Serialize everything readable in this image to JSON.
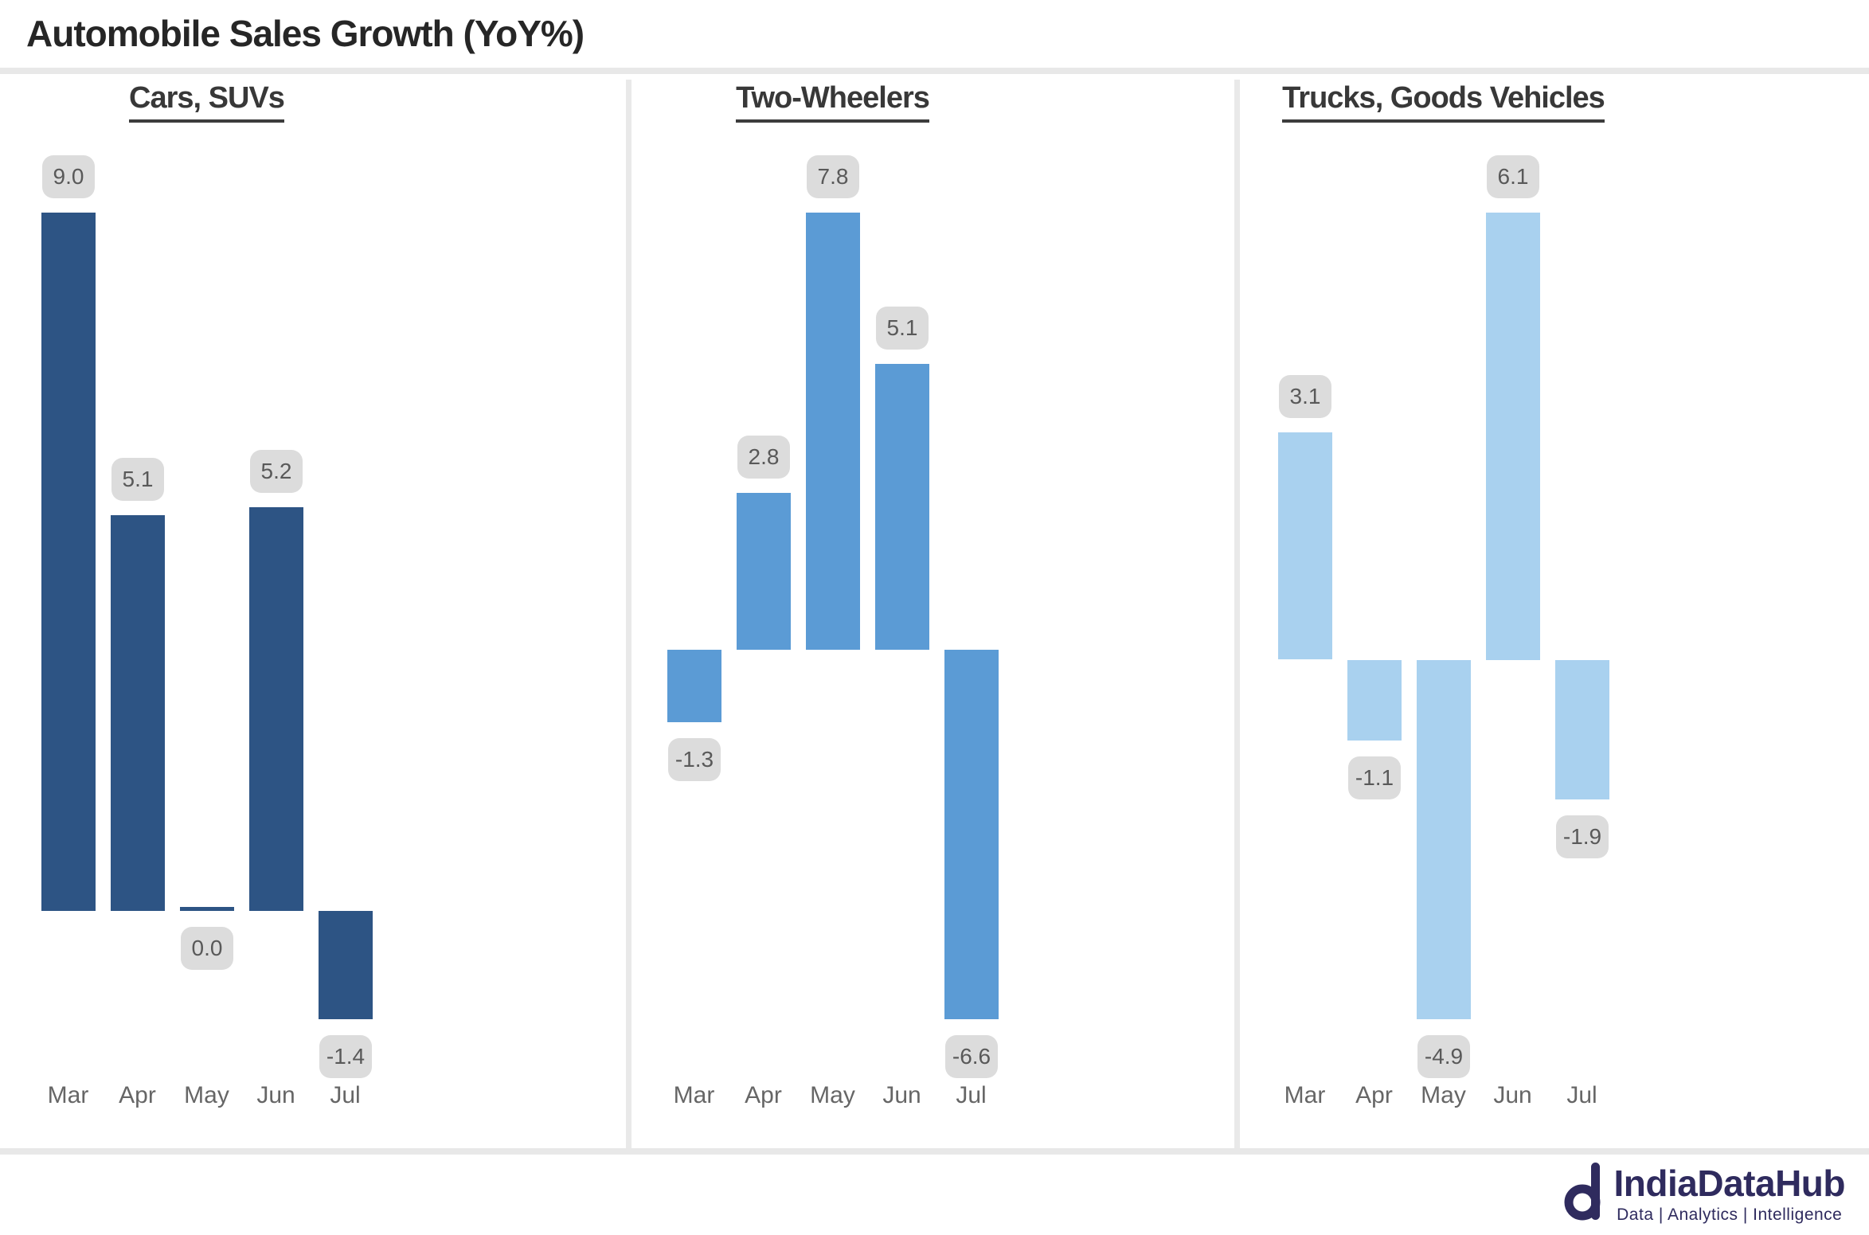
{
  "header": {
    "title": "Automobile Sales Growth (YoY%)"
  },
  "chart_data": {
    "type": "bar",
    "title": "Automobile Sales Growth (YoY%)",
    "categories": [
      "Mar",
      "Apr",
      "May",
      "Jun",
      "Jul"
    ],
    "series": [
      {
        "name": "Cars, SUVs",
        "values": [
          9.0,
          5.1,
          0.0,
          5.2,
          -1.4
        ],
        "color": "#2D5484"
      },
      {
        "name": "Two-Wheelers",
        "values": [
          -1.3,
          2.8,
          7.8,
          5.1,
          -6.6
        ],
        "color": "#5B9BD5"
      },
      {
        "name": "Trucks, Goods Vehicles",
        "values": [
          3.1,
          -1.1,
          -4.9,
          6.1,
          -1.9
        ],
        "color": "#A9D1EF"
      }
    ],
    "value_label_format": "one-decimal",
    "layout": {
      "small_multiples": true,
      "legend": false,
      "gridlines": false,
      "axis_lines": false,
      "data_labels": "gray rounded badges above positive bars / below negative bars",
      "x_axis": "months"
    }
  },
  "badges": {
    "bg": "#DCDCDC",
    "text_color": "#595959"
  },
  "footer": {
    "logo_name": "IndiaDataHub",
    "logo_tagline": "Data | Analytics | Intelligence",
    "logo_color": "#2F2B5E"
  }
}
